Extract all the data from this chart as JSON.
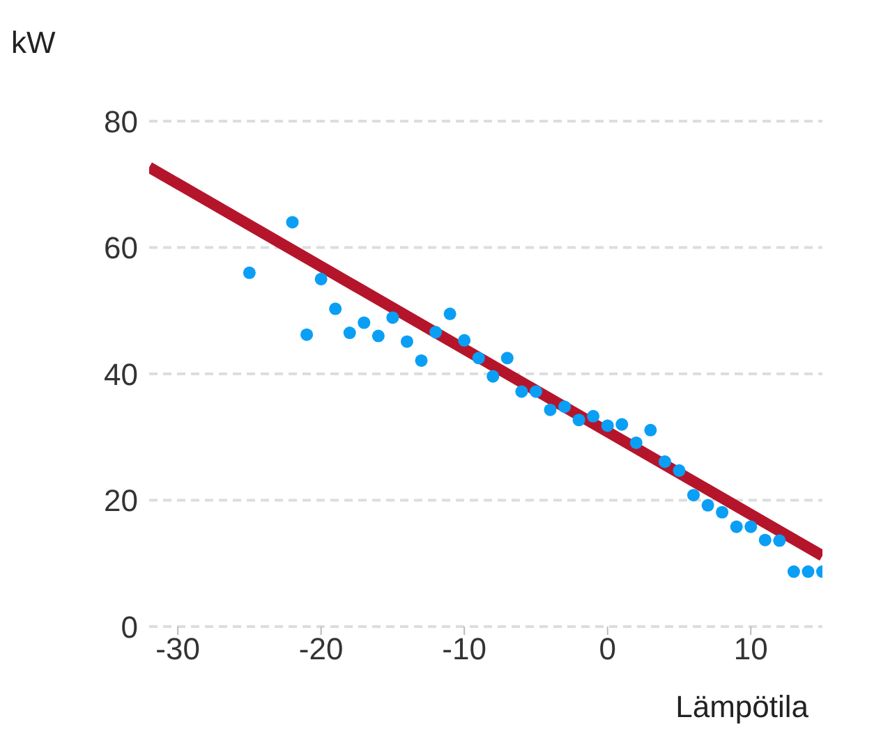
{
  "chart_data": {
    "type": "scatter",
    "xlabel": "Lämpötila",
    "ylabel": "kW",
    "xlim": [
      -32,
      15
    ],
    "xticks": [
      -30,
      -20,
      -10,
      0,
      10
    ],
    "ylim": [
      0,
      80
    ],
    "yticks": [
      0,
      20,
      40,
      60,
      80
    ],
    "grid": "y",
    "series": [
      {
        "marker": "circle",
        "color": "#0a9ff5",
        "x": [
          -25,
          -22,
          -21,
          -20,
          -19,
          -18,
          -17,
          -16,
          -15,
          -14,
          -13,
          -12,
          -11,
          -10,
          -9,
          -8,
          -7,
          -6,
          -5,
          -4,
          -3,
          -2,
          -1,
          0,
          1,
          2,
          3,
          4,
          5,
          6,
          7,
          8,
          9,
          10,
          11,
          12,
          13,
          14,
          15
        ],
        "values": [
          56,
          64,
          46.2,
          55,
          50.3,
          46.5,
          48.1,
          46,
          48.9,
          45.1,
          42.1,
          46.6,
          49.5,
          45.3,
          42.5,
          39.6,
          42.5,
          37.2,
          37.2,
          34.3,
          34.8,
          32.7,
          33.3,
          31.8,
          32,
          29.1,
          31.1,
          26.1,
          24.7,
          20.8,
          19.2,
          18.1,
          15.8,
          15.8,
          13.7,
          13.6,
          8.7,
          8.7,
          8.7
        ]
      },
      {
        "type": "line",
        "color": "#b5152b",
        "line_style": "solid",
        "x": [
          -32,
          15
        ],
        "values": [
          72.7,
          11.2
        ]
      }
    ]
  }
}
